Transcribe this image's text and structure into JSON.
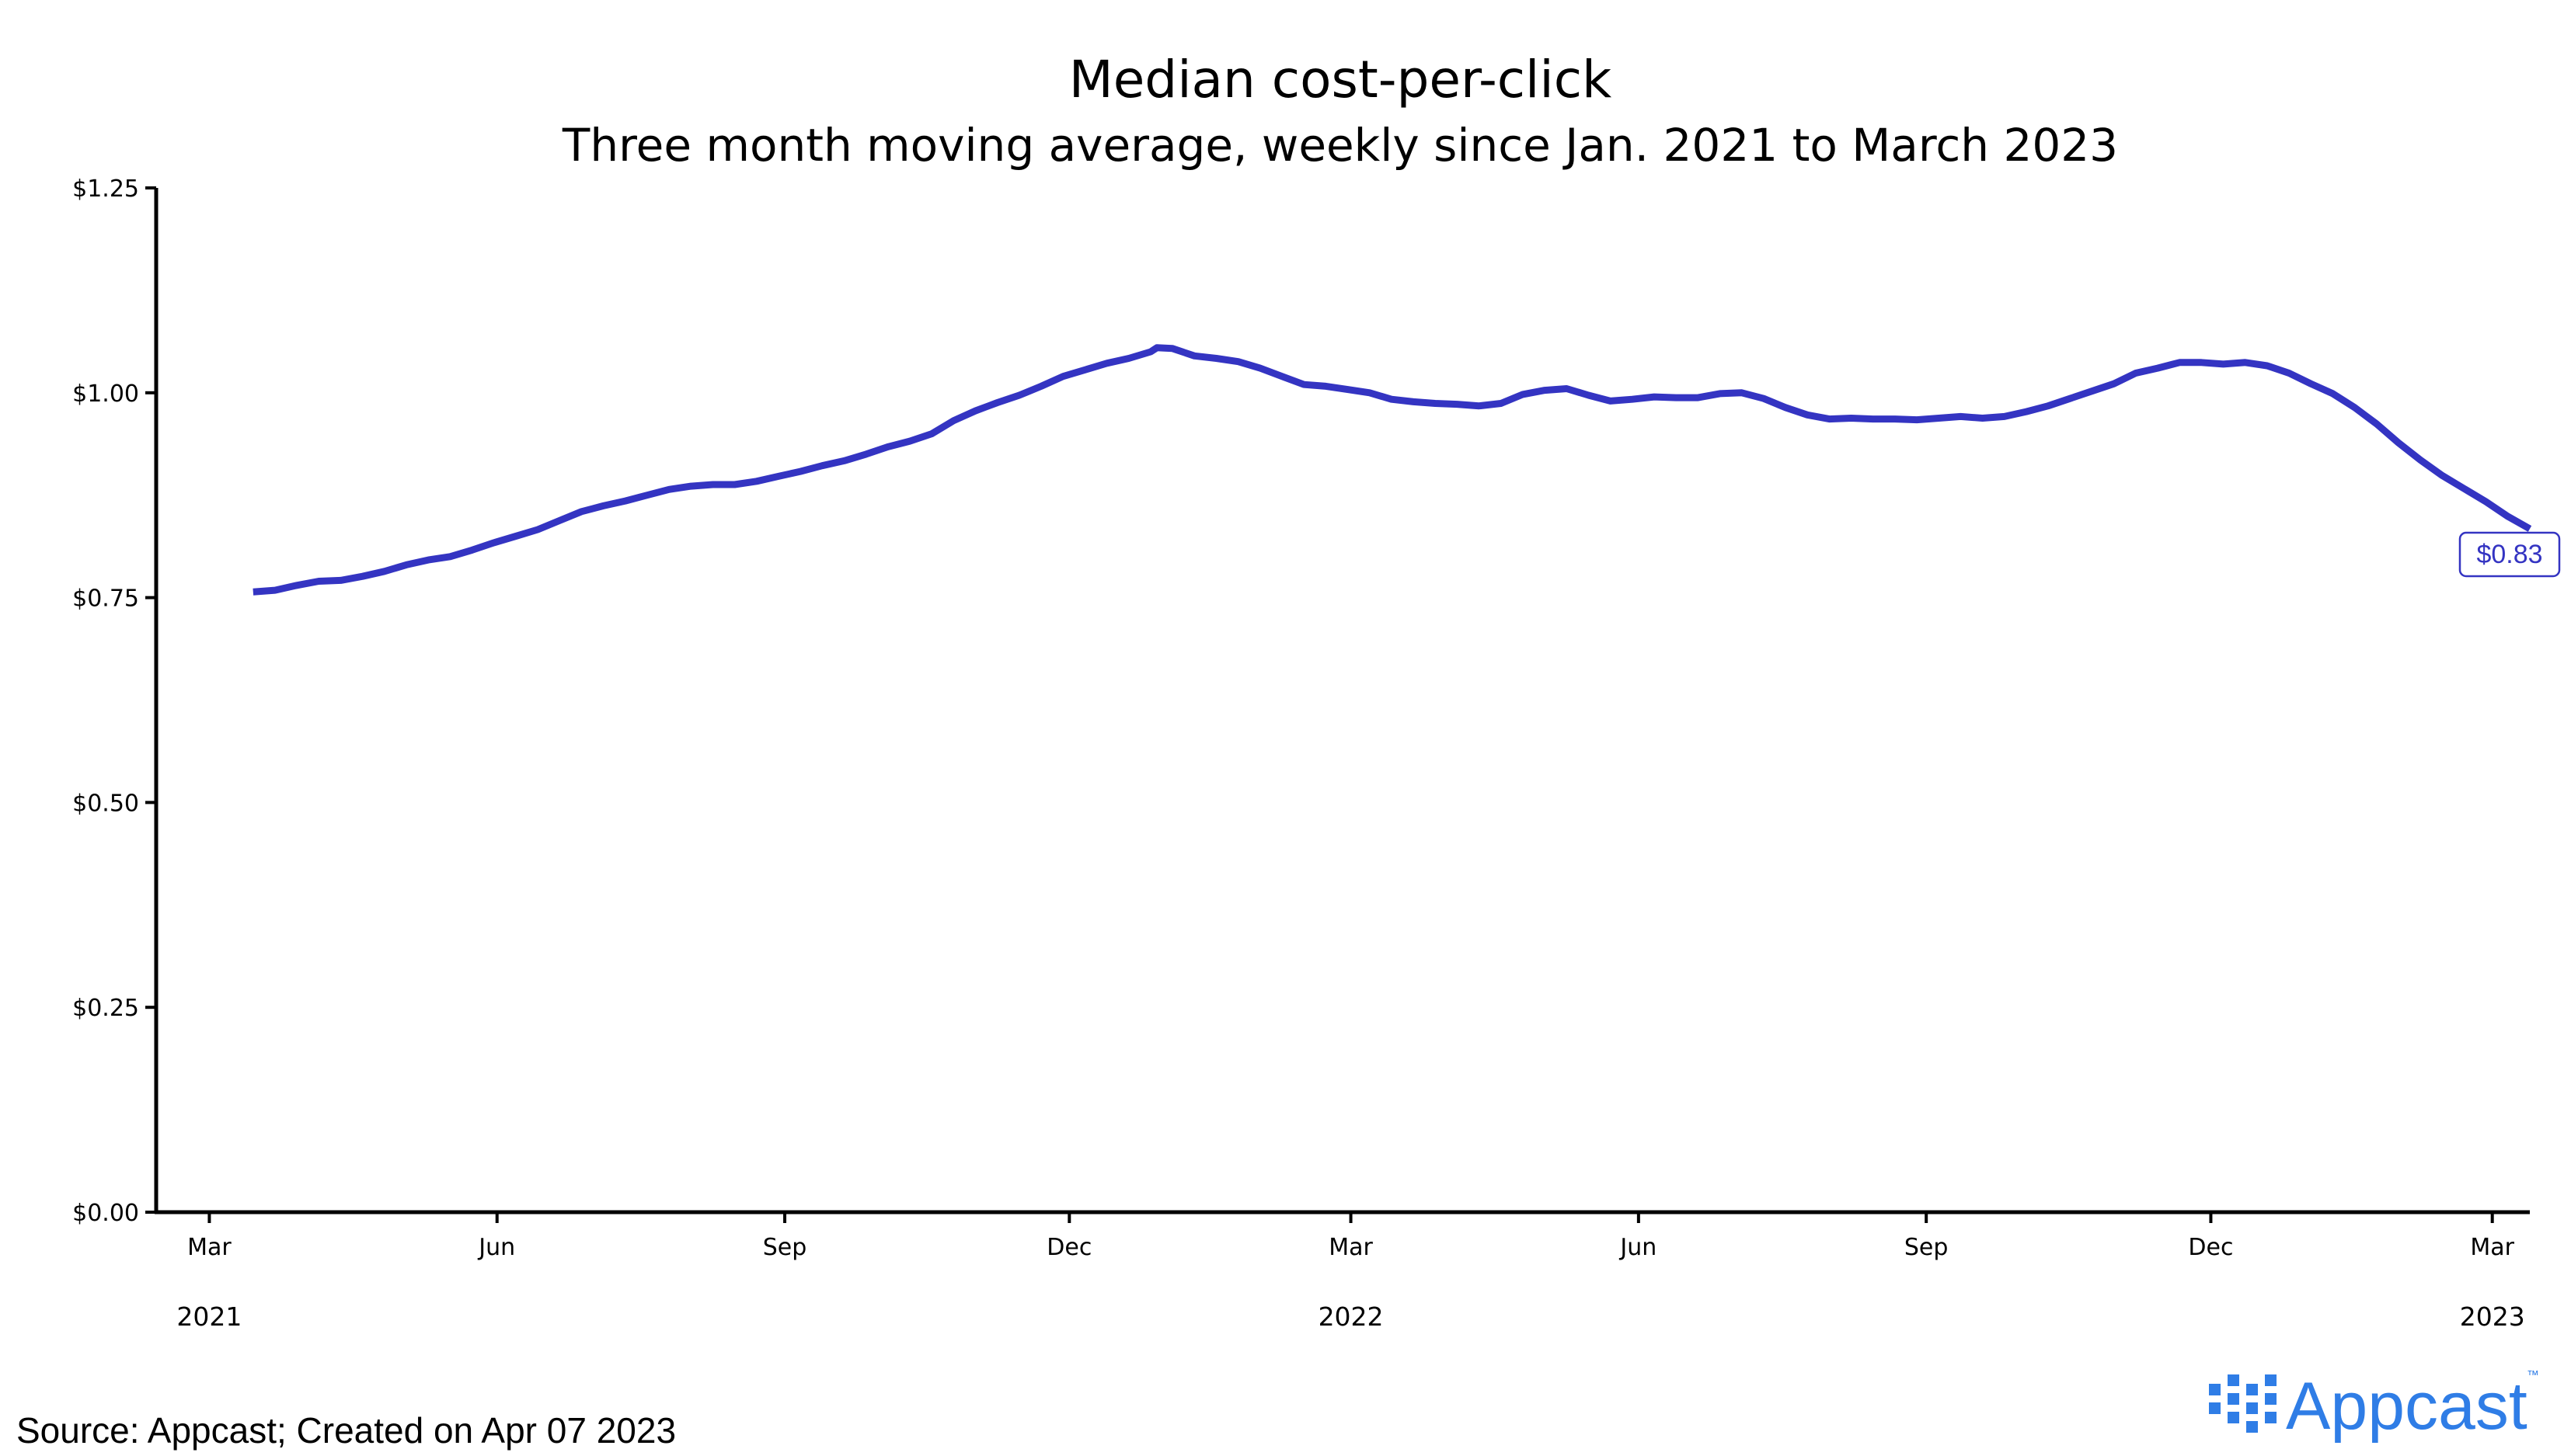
{
  "colors": {
    "line": "#3434c2",
    "axis": "#000000",
    "brand": "#2f7de6"
  },
  "logo": {
    "name": "appcast-logo",
    "text": "Appcast",
    "tm": "™"
  },
  "source": "Source: Appcast; Created on Apr 07 2023",
  "last_value_label": "$0.83",
  "chart_data": {
    "type": "line",
    "title": "Median cost-per-click",
    "subtitle": "Three month moving average, weekly since Jan. 2021 to March 2023",
    "xlabel": "",
    "ylabel": "",
    "ylim": [
      0,
      1.25
    ],
    "xlim": [
      "2021-02-12",
      "2023-03-13"
    ],
    "yticks": [
      {
        "value": 0,
        "label": "$0.00"
      },
      {
        "value": 0.25,
        "label": "$0.25"
      },
      {
        "value": 0.5,
        "label": "$0.50"
      },
      {
        "value": 0.75,
        "label": "$0.75"
      },
      {
        "value": 1.0,
        "label": "$1.00"
      },
      {
        "value": 1.25,
        "label": "$1.25"
      }
    ],
    "xticks": [
      {
        "date": "2021-03-01",
        "label": "Mar"
      },
      {
        "date": "2021-06-01",
        "label": "Jun"
      },
      {
        "date": "2021-09-01",
        "label": "Sep"
      },
      {
        "date": "2021-12-01",
        "label": "Dec"
      },
      {
        "date": "2022-03-01",
        "label": "Mar"
      },
      {
        "date": "2022-06-01",
        "label": "Jun"
      },
      {
        "date": "2022-09-01",
        "label": "Sep"
      },
      {
        "date": "2022-12-01",
        "label": "Dec"
      },
      {
        "date": "2023-03-01",
        "label": "Mar"
      }
    ],
    "year_labels": [
      {
        "date": "2021-03-01",
        "label": "2021"
      },
      {
        "date": "2022-03-01",
        "label": "2022"
      },
      {
        "date": "2023-03-01",
        "label": "2023"
      }
    ],
    "grid": false,
    "legend": "none",
    "series": [
      {
        "color": "#3434c2",
        "points": [
          [
            "2021-03-15",
            0.757
          ],
          [
            "2021-03-22",
            0.759
          ],
          [
            "2021-03-29",
            0.765
          ],
          [
            "2021-04-05",
            0.77
          ],
          [
            "2021-04-12",
            0.771
          ],
          [
            "2021-04-19",
            0.776
          ],
          [
            "2021-04-26",
            0.782
          ],
          [
            "2021-05-03",
            0.79
          ],
          [
            "2021-05-10",
            0.796
          ],
          [
            "2021-05-17",
            0.8
          ],
          [
            "2021-05-24",
            0.808
          ],
          [
            "2021-05-31",
            0.817
          ],
          [
            "2021-06-07",
            0.825
          ],
          [
            "2021-06-14",
            0.833
          ],
          [
            "2021-06-21",
            0.844
          ],
          [
            "2021-06-28",
            0.855
          ],
          [
            "2021-07-05",
            0.862
          ],
          [
            "2021-07-12",
            0.868
          ],
          [
            "2021-07-19",
            0.875
          ],
          [
            "2021-07-26",
            0.882
          ],
          [
            "2021-08-02",
            0.886
          ],
          [
            "2021-08-09",
            0.888
          ],
          [
            "2021-08-16",
            0.888
          ],
          [
            "2021-08-23",
            0.892
          ],
          [
            "2021-08-30",
            0.898
          ],
          [
            "2021-09-06",
            0.904
          ],
          [
            "2021-09-13",
            0.911
          ],
          [
            "2021-09-20",
            0.917
          ],
          [
            "2021-09-27",
            0.925
          ],
          [
            "2021-10-04",
            0.934
          ],
          [
            "2021-10-11",
            0.941
          ],
          [
            "2021-10-18",
            0.95
          ],
          [
            "2021-10-25",
            0.966
          ],
          [
            "2021-11-01",
            0.978
          ],
          [
            "2021-11-08",
            0.988
          ],
          [
            "2021-11-15",
            0.997
          ],
          [
            "2021-11-22",
            1.008
          ],
          [
            "2021-11-29",
            1.02
          ],
          [
            "2021-12-06",
            1.028
          ],
          [
            "2021-12-13",
            1.036
          ],
          [
            "2021-12-20",
            1.042
          ],
          [
            "2021-12-27",
            1.05
          ],
          [
            "2021-12-29",
            1.055
          ],
          [
            "2022-01-03",
            1.054
          ],
          [
            "2022-01-10",
            1.045
          ],
          [
            "2022-01-17",
            1.042
          ],
          [
            "2022-01-24",
            1.038
          ],
          [
            "2022-01-31",
            1.03
          ],
          [
            "2022-02-07",
            1.02
          ],
          [
            "2022-02-14",
            1.01
          ],
          [
            "2022-02-21",
            1.008
          ],
          [
            "2022-02-28",
            1.004
          ],
          [
            "2022-03-07",
            1.0
          ],
          [
            "2022-03-14",
            0.992
          ],
          [
            "2022-03-21",
            0.989
          ],
          [
            "2022-03-28",
            0.987
          ],
          [
            "2022-04-04",
            0.986
          ],
          [
            "2022-04-11",
            0.984
          ],
          [
            "2022-04-18",
            0.987
          ],
          [
            "2022-04-25",
            0.998
          ],
          [
            "2022-05-02",
            1.003
          ],
          [
            "2022-05-09",
            1.005
          ],
          [
            "2022-05-16",
            0.997
          ],
          [
            "2022-05-23",
            0.99
          ],
          [
            "2022-05-30",
            0.992
          ],
          [
            "2022-06-06",
            0.995
          ],
          [
            "2022-06-13",
            0.994
          ],
          [
            "2022-06-20",
            0.994
          ],
          [
            "2022-06-27",
            0.999
          ],
          [
            "2022-07-04",
            1.0
          ],
          [
            "2022-07-11",
            0.993
          ],
          [
            "2022-07-18",
            0.982
          ],
          [
            "2022-07-25",
            0.973
          ],
          [
            "2022-08-01",
            0.968
          ],
          [
            "2022-08-08",
            0.969
          ],
          [
            "2022-08-15",
            0.968
          ],
          [
            "2022-08-22",
            0.968
          ],
          [
            "2022-08-29",
            0.967
          ],
          [
            "2022-09-05",
            0.969
          ],
          [
            "2022-09-12",
            0.971
          ],
          [
            "2022-09-19",
            0.969
          ],
          [
            "2022-09-26",
            0.971
          ],
          [
            "2022-10-03",
            0.977
          ],
          [
            "2022-10-10",
            0.984
          ],
          [
            "2022-10-17",
            0.993
          ],
          [
            "2022-10-24",
            1.002
          ],
          [
            "2022-10-31",
            1.011
          ],
          [
            "2022-11-07",
            1.024
          ],
          [
            "2022-11-14",
            1.03
          ],
          [
            "2022-11-21",
            1.037
          ],
          [
            "2022-11-28",
            1.037
          ],
          [
            "2022-12-05",
            1.035
          ],
          [
            "2022-12-12",
            1.037
          ],
          [
            "2022-12-19",
            1.033
          ],
          [
            "2022-12-26",
            1.024
          ],
          [
            "2023-01-02",
            1.011
          ],
          [
            "2023-01-09",
            0.999
          ],
          [
            "2023-01-16",
            0.982
          ],
          [
            "2023-01-23",
            0.962
          ],
          [
            "2023-01-30",
            0.939
          ],
          [
            "2023-02-06",
            0.918
          ],
          [
            "2023-02-13",
            0.899
          ],
          [
            "2023-02-20",
            0.883
          ],
          [
            "2023-02-27",
            0.867
          ],
          [
            "2023-03-06",
            0.849
          ],
          [
            "2023-03-13",
            0.834
          ]
        ]
      }
    ]
  }
}
